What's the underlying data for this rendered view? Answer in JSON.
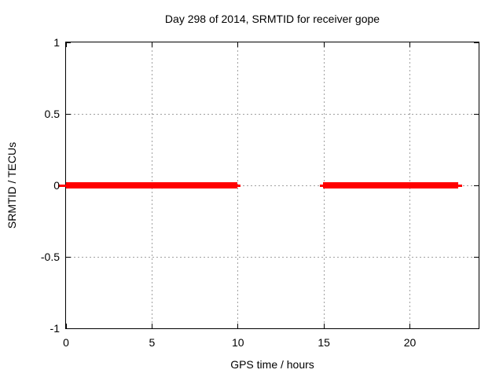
{
  "window": {
    "background": "#ffffff"
  },
  "chart_data": {
    "type": "line",
    "title": "Day 298 of 2014, SRMTID for receiver gope",
    "xlabel": "GPS time / hours",
    "ylabel": "SRMTID / TECUs",
    "xlim": [
      0,
      24
    ],
    "ylim": [
      -1,
      1
    ],
    "xticks": [
      {
        "value": 0,
        "label": "0"
      },
      {
        "value": 5,
        "label": "5"
      },
      {
        "value": 10,
        "label": "10"
      },
      {
        "value": 15,
        "label": "15"
      },
      {
        "value": 20,
        "label": "20"
      }
    ],
    "yticks": [
      {
        "value": -1,
        "label": "-1"
      },
      {
        "value": -0.5,
        "label": "-0.5"
      },
      {
        "value": 0,
        "label": "0"
      },
      {
        "value": 0.5,
        "label": "0.5"
      },
      {
        "value": 1,
        "label": "1"
      }
    ],
    "grid": true,
    "legend": "none",
    "colors": {
      "series": "#ff0000",
      "grid": "#a0a0a0",
      "border": "#000000",
      "text": "#000000"
    },
    "series": [
      {
        "name": "SRMTID",
        "color": "#ff0000",
        "y": 0,
        "segments": [
          {
            "x0": -0.46,
            "x1": 0,
            "weight": "thin"
          },
          {
            "x0": 0,
            "x1": 9.97,
            "weight": "thick"
          },
          {
            "x0": 9.97,
            "x1": 10.15,
            "weight": "thin"
          },
          {
            "x0": 14.78,
            "x1": 14.97,
            "weight": "thin"
          },
          {
            "x0": 14.97,
            "x1": 22.82,
            "weight": "thick"
          },
          {
            "x0": 22.82,
            "x1": 23.05,
            "weight": "thin"
          }
        ]
      }
    ]
  }
}
